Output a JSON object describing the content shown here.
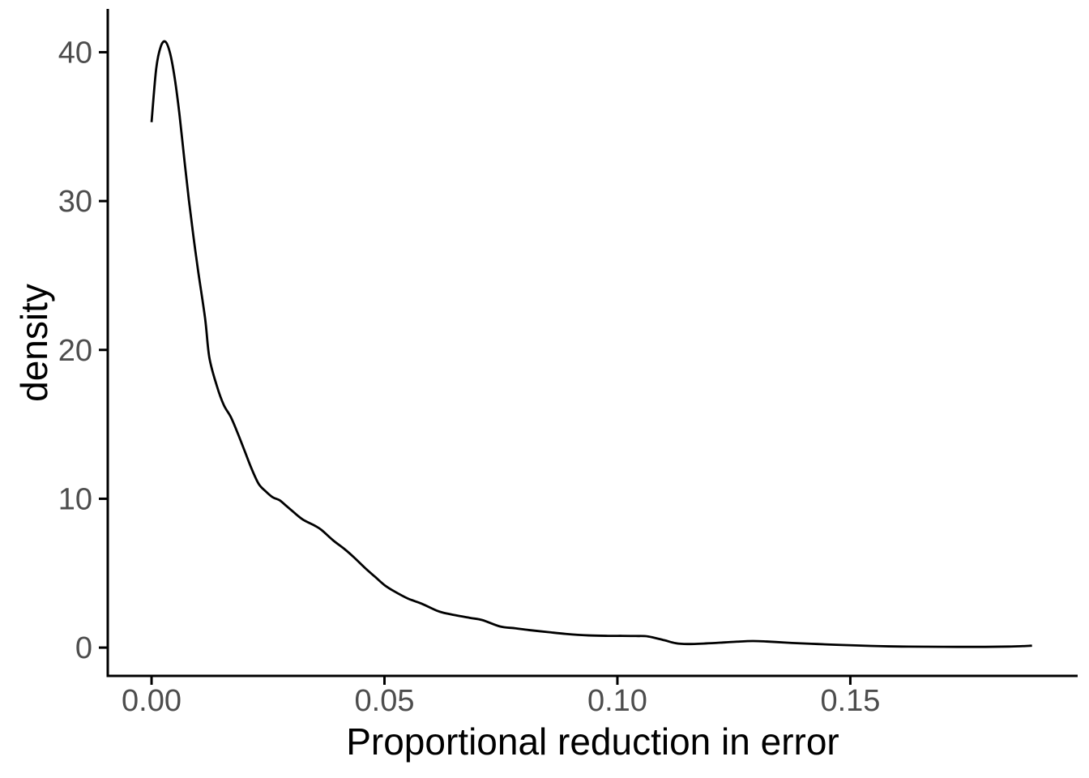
{
  "figure": {
    "background": "#ffffff"
  },
  "chart_data": {
    "type": "line",
    "subtype": "kernel-density-curve",
    "title": "",
    "xlabel": "Proportional reduction in error",
    "ylabel": "density",
    "x": [
      0.0,
      0.001,
      0.002,
      0.003,
      0.004,
      0.005,
      0.006,
      0.007,
      0.008,
      0.009,
      0.01,
      0.0115,
      0.0124,
      0.014,
      0.0155,
      0.017,
      0.0185,
      0.02,
      0.0215,
      0.023,
      0.0245,
      0.026,
      0.0275,
      0.029,
      0.0305,
      0.0325,
      0.035,
      0.0365,
      0.039,
      0.0415,
      0.0435,
      0.046,
      0.048,
      0.05,
      0.052,
      0.055,
      0.058,
      0.0615,
      0.064,
      0.0683,
      0.071,
      0.0748,
      0.078,
      0.081,
      0.0852,
      0.089,
      0.0939,
      0.098,
      0.101,
      0.104,
      0.1066,
      0.11,
      0.1125,
      0.115,
      0.119,
      0.123,
      0.1257,
      0.129,
      0.132,
      0.136,
      0.139,
      0.143,
      0.147,
      0.151,
      0.156,
      0.161,
      0.166,
      0.173,
      0.179,
      0.184,
      0.187,
      0.189
    ],
    "y": [
      35.3,
      38.9,
      40.4,
      40.7,
      39.9,
      38.2,
      35.8,
      32.9,
      30.1,
      27.6,
      25.3,
      22.1,
      19.5,
      17.6,
      16.3,
      15.5,
      14.4,
      13.2,
      12.0,
      11.0,
      10.5,
      10.1,
      9.9,
      9.5,
      9.1,
      8.6,
      8.2,
      7.9,
      7.2,
      6.6,
      6.05,
      5.3,
      4.75,
      4.2,
      3.8,
      3.3,
      2.95,
      2.45,
      2.25,
      2.0,
      1.85,
      1.42,
      1.3,
      1.18,
      1.04,
      0.92,
      0.82,
      0.79,
      0.79,
      0.78,
      0.75,
      0.5,
      0.3,
      0.24,
      0.28,
      0.35,
      0.4,
      0.44,
      0.41,
      0.34,
      0.29,
      0.24,
      0.19,
      0.15,
      0.1,
      0.07,
      0.06,
      0.05,
      0.05,
      0.07,
      0.1,
      0.13
    ],
    "peak": {
      "x": 0.003,
      "y": 40.7
    },
    "xlim": [
      -0.0094,
      0.1988
    ],
    "ylim": [
      -1.9,
      42.8
    ],
    "xticks": {
      "values": [
        0,
        0.05,
        0.1,
        0.15
      ],
      "labels": [
        "0.00",
        "0.05",
        "0.10",
        "0.15"
      ]
    },
    "yticks": {
      "values": [
        0,
        10,
        20,
        30,
        40
      ],
      "labels": [
        "0",
        "10",
        "20",
        "30",
        "40"
      ]
    },
    "grid": "off",
    "legend": "none",
    "line_color": "#000000",
    "line_width": 2.8,
    "axis_line_color": "#000000",
    "axis_line_width": 3,
    "tick_length": 11,
    "tick_label_color": "#4d4d4d",
    "axis_title_color": "#000000"
  }
}
